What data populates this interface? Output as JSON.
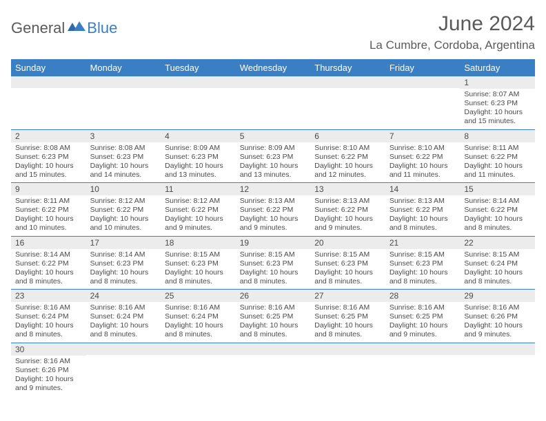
{
  "brand": {
    "part1": "General",
    "part2": "Blue"
  },
  "title": "June 2024",
  "location": "La Cumbre, Cordoba, Argentina",
  "colors": {
    "accent": "#3a7fc4",
    "daynum_bg": "#ececec",
    "text": "#4a4a4a"
  },
  "day_headers": [
    "Sunday",
    "Monday",
    "Tuesday",
    "Wednesday",
    "Thursday",
    "Friday",
    "Saturday"
  ],
  "weeks": [
    [
      {
        "n": "",
        "sr": "",
        "ss": "",
        "dl": ""
      },
      {
        "n": "",
        "sr": "",
        "ss": "",
        "dl": ""
      },
      {
        "n": "",
        "sr": "",
        "ss": "",
        "dl": ""
      },
      {
        "n": "",
        "sr": "",
        "ss": "",
        "dl": ""
      },
      {
        "n": "",
        "sr": "",
        "ss": "",
        "dl": ""
      },
      {
        "n": "",
        "sr": "",
        "ss": "",
        "dl": ""
      },
      {
        "n": "1",
        "sr": "Sunrise: 8:07 AM",
        "ss": "Sunset: 6:23 PM",
        "dl": "Daylight: 10 hours and 15 minutes."
      }
    ],
    [
      {
        "n": "2",
        "sr": "Sunrise: 8:08 AM",
        "ss": "Sunset: 6:23 PM",
        "dl": "Daylight: 10 hours and 15 minutes."
      },
      {
        "n": "3",
        "sr": "Sunrise: 8:08 AM",
        "ss": "Sunset: 6:23 PM",
        "dl": "Daylight: 10 hours and 14 minutes."
      },
      {
        "n": "4",
        "sr": "Sunrise: 8:09 AM",
        "ss": "Sunset: 6:23 PM",
        "dl": "Daylight: 10 hours and 13 minutes."
      },
      {
        "n": "5",
        "sr": "Sunrise: 8:09 AM",
        "ss": "Sunset: 6:23 PM",
        "dl": "Daylight: 10 hours and 13 minutes."
      },
      {
        "n": "6",
        "sr": "Sunrise: 8:10 AM",
        "ss": "Sunset: 6:22 PM",
        "dl": "Daylight: 10 hours and 12 minutes."
      },
      {
        "n": "7",
        "sr": "Sunrise: 8:10 AM",
        "ss": "Sunset: 6:22 PM",
        "dl": "Daylight: 10 hours and 11 minutes."
      },
      {
        "n": "8",
        "sr": "Sunrise: 8:11 AM",
        "ss": "Sunset: 6:22 PM",
        "dl": "Daylight: 10 hours and 11 minutes."
      }
    ],
    [
      {
        "n": "9",
        "sr": "Sunrise: 8:11 AM",
        "ss": "Sunset: 6:22 PM",
        "dl": "Daylight: 10 hours and 10 minutes."
      },
      {
        "n": "10",
        "sr": "Sunrise: 8:12 AM",
        "ss": "Sunset: 6:22 PM",
        "dl": "Daylight: 10 hours and 10 minutes."
      },
      {
        "n": "11",
        "sr": "Sunrise: 8:12 AM",
        "ss": "Sunset: 6:22 PM",
        "dl": "Daylight: 10 hours and 9 minutes."
      },
      {
        "n": "12",
        "sr": "Sunrise: 8:13 AM",
        "ss": "Sunset: 6:22 PM",
        "dl": "Daylight: 10 hours and 9 minutes."
      },
      {
        "n": "13",
        "sr": "Sunrise: 8:13 AM",
        "ss": "Sunset: 6:22 PM",
        "dl": "Daylight: 10 hours and 9 minutes."
      },
      {
        "n": "14",
        "sr": "Sunrise: 8:13 AM",
        "ss": "Sunset: 6:22 PM",
        "dl": "Daylight: 10 hours and 8 minutes."
      },
      {
        "n": "15",
        "sr": "Sunrise: 8:14 AM",
        "ss": "Sunset: 6:22 PM",
        "dl": "Daylight: 10 hours and 8 minutes."
      }
    ],
    [
      {
        "n": "16",
        "sr": "Sunrise: 8:14 AM",
        "ss": "Sunset: 6:22 PM",
        "dl": "Daylight: 10 hours and 8 minutes."
      },
      {
        "n": "17",
        "sr": "Sunrise: 8:14 AM",
        "ss": "Sunset: 6:23 PM",
        "dl": "Daylight: 10 hours and 8 minutes."
      },
      {
        "n": "18",
        "sr": "Sunrise: 8:15 AM",
        "ss": "Sunset: 6:23 PM",
        "dl": "Daylight: 10 hours and 8 minutes."
      },
      {
        "n": "19",
        "sr": "Sunrise: 8:15 AM",
        "ss": "Sunset: 6:23 PM",
        "dl": "Daylight: 10 hours and 8 minutes."
      },
      {
        "n": "20",
        "sr": "Sunrise: 8:15 AM",
        "ss": "Sunset: 6:23 PM",
        "dl": "Daylight: 10 hours and 8 minutes."
      },
      {
        "n": "21",
        "sr": "Sunrise: 8:15 AM",
        "ss": "Sunset: 6:23 PM",
        "dl": "Daylight: 10 hours and 8 minutes."
      },
      {
        "n": "22",
        "sr": "Sunrise: 8:15 AM",
        "ss": "Sunset: 6:24 PM",
        "dl": "Daylight: 10 hours and 8 minutes."
      }
    ],
    [
      {
        "n": "23",
        "sr": "Sunrise: 8:16 AM",
        "ss": "Sunset: 6:24 PM",
        "dl": "Daylight: 10 hours and 8 minutes."
      },
      {
        "n": "24",
        "sr": "Sunrise: 8:16 AM",
        "ss": "Sunset: 6:24 PM",
        "dl": "Daylight: 10 hours and 8 minutes."
      },
      {
        "n": "25",
        "sr": "Sunrise: 8:16 AM",
        "ss": "Sunset: 6:24 PM",
        "dl": "Daylight: 10 hours and 8 minutes."
      },
      {
        "n": "26",
        "sr": "Sunrise: 8:16 AM",
        "ss": "Sunset: 6:25 PM",
        "dl": "Daylight: 10 hours and 8 minutes."
      },
      {
        "n": "27",
        "sr": "Sunrise: 8:16 AM",
        "ss": "Sunset: 6:25 PM",
        "dl": "Daylight: 10 hours and 8 minutes."
      },
      {
        "n": "28",
        "sr": "Sunrise: 8:16 AM",
        "ss": "Sunset: 6:25 PM",
        "dl": "Daylight: 10 hours and 9 minutes."
      },
      {
        "n": "29",
        "sr": "Sunrise: 8:16 AM",
        "ss": "Sunset: 6:26 PM",
        "dl": "Daylight: 10 hours and 9 minutes."
      }
    ],
    [
      {
        "n": "30",
        "sr": "Sunrise: 8:16 AM",
        "ss": "Sunset: 6:26 PM",
        "dl": "Daylight: 10 hours and 9 minutes."
      },
      {
        "n": "",
        "sr": "",
        "ss": "",
        "dl": ""
      },
      {
        "n": "",
        "sr": "",
        "ss": "",
        "dl": ""
      },
      {
        "n": "",
        "sr": "",
        "ss": "",
        "dl": ""
      },
      {
        "n": "",
        "sr": "",
        "ss": "",
        "dl": ""
      },
      {
        "n": "",
        "sr": "",
        "ss": "",
        "dl": ""
      },
      {
        "n": "",
        "sr": "",
        "ss": "",
        "dl": ""
      }
    ]
  ]
}
